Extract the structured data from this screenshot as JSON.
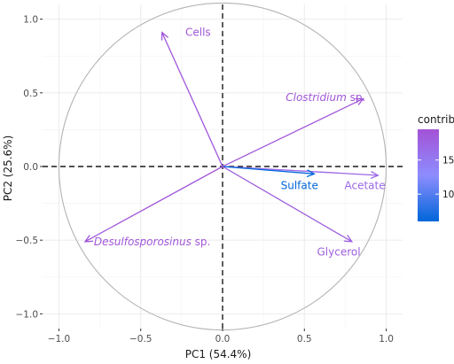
{
  "chart_data": {
    "type": "scatter",
    "subtype": "pca-variable-correlation-circle",
    "xlabel": "PC1 (54.4%)",
    "ylabel": "PC2 (25.6%)",
    "xlim": [
      -1.1,
      1.1
    ],
    "ylim": [
      -1.1,
      1.1
    ],
    "x_ticks": [
      -1.0,
      -0.5,
      0.0,
      0.5,
      1.0
    ],
    "x_tick_labels": [
      "−1.0",
      "−0.5",
      "0.0",
      "0.5",
      "1.0"
    ],
    "y_ticks": [
      -1.0,
      -0.5,
      0.0,
      0.5,
      1.0
    ],
    "y_tick_labels": [
      "−1.0",
      "−0.5",
      "0.0",
      "0.5",
      "1.0"
    ],
    "grid": true,
    "unit_circle": true,
    "zero_lines": "dashed",
    "variables": [
      {
        "name": "Cells",
        "italic_part": "",
        "suffix": "",
        "x": -0.37,
        "y": 0.91,
        "contrib": 19.0,
        "label_dx": 0.22,
        "label_dy": 0.0
      },
      {
        "name": "Clostridium",
        "italic_part": "Clostridium",
        "suffix": " sp.",
        "x": 0.86,
        "y": 0.46,
        "contrib": 19.0,
        "label_dx": -0.23,
        "label_dy": 0.01
      },
      {
        "name": "Acetate",
        "italic_part": "",
        "suffix": "",
        "x": 0.95,
        "y": -0.06,
        "contrib": 17.0,
        "label_dx": -0.08,
        "label_dy": -0.07
      },
      {
        "name": "Sulfate",
        "italic_part": "",
        "suffix": "",
        "x": 0.56,
        "y": -0.05,
        "contrib": 6.0,
        "label_dx": -0.09,
        "label_dy": -0.08
      },
      {
        "name": "Glycerol",
        "italic_part": "",
        "suffix": "",
        "x": 0.79,
        "y": -0.51,
        "contrib": 18.0,
        "label_dx": -0.08,
        "label_dy": -0.07
      },
      {
        "name": "Desulfosporosinus",
        "italic_part": "Desulfosporosinus",
        "suffix": " sp.",
        "x": -0.84,
        "y": -0.51,
        "contrib": 19.0,
        "label_dx": 0.41,
        "label_dy": 0.0
      }
    ],
    "legend": {
      "title": "contrib",
      "position": "right",
      "range": [
        6,
        19.5
      ],
      "ticks": [
        10,
        15
      ],
      "colors": [
        "#0066d9",
        "#8d8dff",
        "#a352d6"
      ]
    }
  }
}
